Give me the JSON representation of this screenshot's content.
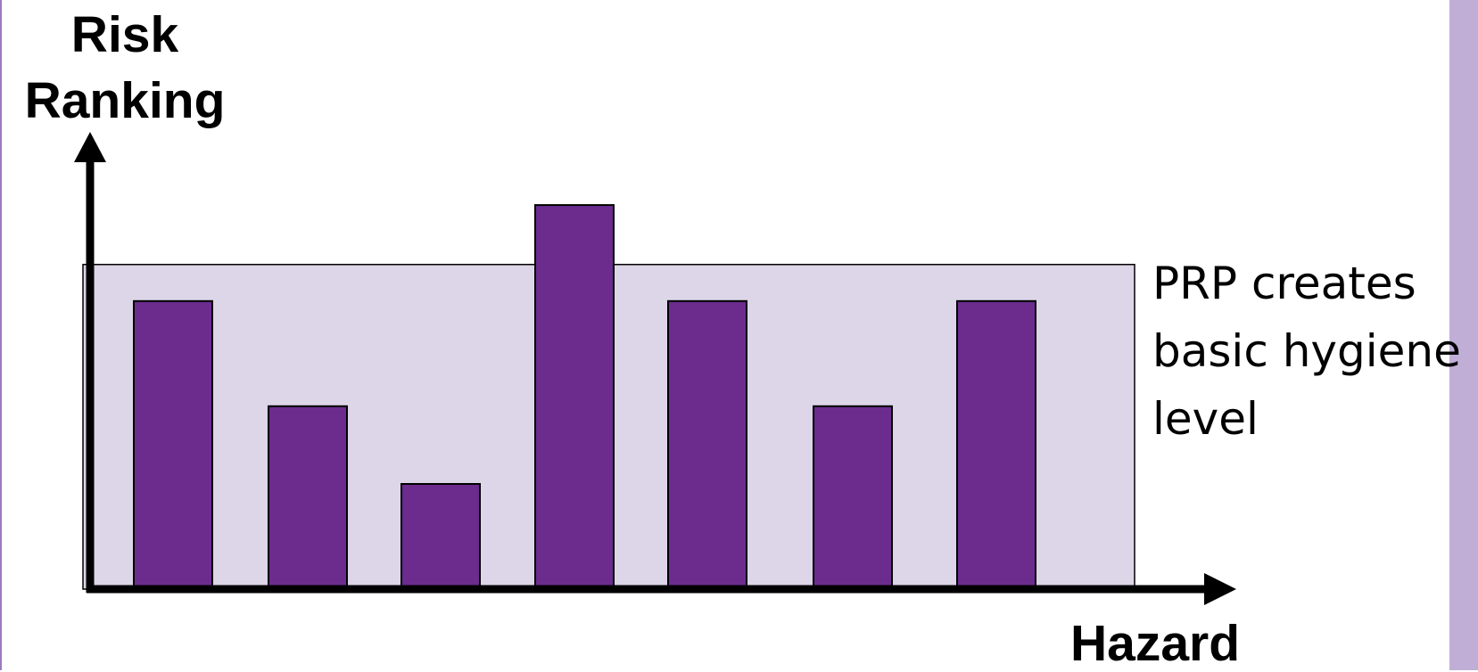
{
  "chart_data": {
    "type": "bar",
    "y_label": "Risk Ranking",
    "x_label": "Hazard",
    "annotation": {
      "text": "PRP creates basic hygiene level",
      "level": 71,
      "color": "#ddd5e8"
    },
    "categories": [
      null,
      null,
      null,
      null,
      null,
      null,
      null
    ],
    "values": [
      63,
      40,
      23,
      84,
      63,
      40,
      63
    ],
    "color": "#6b2c8e",
    "ylim": [
      0,
      100
    ]
  }
}
